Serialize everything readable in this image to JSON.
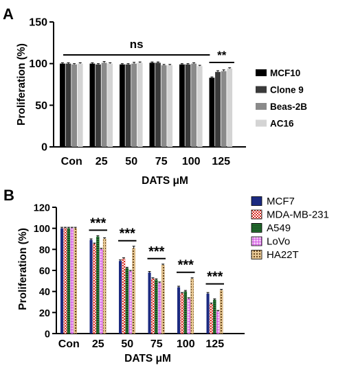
{
  "chart_data": [
    {
      "panel_label": "A",
      "type": "bar",
      "ylabel": "Proliferation (%)",
      "xlabel": "DATS μM",
      "ylim": [
        0,
        150
      ],
      "yticks": [
        0,
        50,
        100,
        150
      ],
      "categories": [
        "Con",
        "25",
        "50",
        "75",
        "100",
        "125"
      ],
      "series": [
        {
          "name": "MCF10",
          "color": "#000000",
          "pattern": "solid",
          "values": [
            100,
            100,
            99,
            101,
            99,
            83
          ],
          "errors": [
            1,
            1,
            1,
            1,
            1,
            1
          ]
        },
        {
          "name": "Clone 9",
          "color": "#3a3a3a",
          "pattern": "solid",
          "values": [
            100,
            99,
            99,
            101,
            99,
            90
          ],
          "errors": [
            1,
            1,
            1,
            1,
            1,
            1.5
          ]
        },
        {
          "name": "Beas-2B",
          "color": "#8a8a8a",
          "pattern": "solid",
          "values": [
            99,
            101,
            100,
            98,
            100,
            91
          ],
          "errors": [
            1,
            1.5,
            1.5,
            1,
            1,
            1.5
          ]
        },
        {
          "name": "AC16",
          "color": "#d4d4d4",
          "pattern": "solid",
          "values": [
            100,
            100,
            101,
            98,
            97,
            94
          ],
          "errors": [
            1,
            1,
            1,
            1,
            1,
            1
          ]
        }
      ],
      "annotations": [
        {
          "text": "ns",
          "from": 0,
          "to": 4
        },
        {
          "text": "**",
          "from": 5,
          "to": 5
        }
      ],
      "legend_position": "right",
      "grid": false
    },
    {
      "panel_label": "B",
      "type": "bar",
      "ylabel": "Proliferation (%)",
      "xlabel": "DATS μM",
      "ylim": [
        0,
        120
      ],
      "yticks": [
        0,
        20,
        40,
        60,
        80,
        100,
        120
      ],
      "categories": [
        "Con",
        "25",
        "50",
        "75",
        "100",
        "125"
      ],
      "series": [
        {
          "name": "MCF7",
          "color": "#1b2a80",
          "pattern": "solid",
          "values": [
            100,
            89,
            69,
            58,
            44,
            38
          ],
          "errors": [
            1,
            1,
            1,
            1,
            1,
            1
          ]
        },
        {
          "name": "MDA-MB-231",
          "color": "#d9281f",
          "pattern": "checker",
          "values": [
            100,
            85,
            71,
            52,
            38,
            28
          ],
          "errors": [
            1,
            1,
            1,
            1,
            1,
            1
          ]
        },
        {
          "name": "A549",
          "color": "#1e6b2a",
          "pattern": "hstripe",
          "values": [
            100,
            92,
            62,
            51,
            40,
            32
          ],
          "errors": [
            1,
            1,
            1,
            1,
            1,
            1
          ]
        },
        {
          "name": "LoVo",
          "color": "#d84ce6",
          "pattern": "grid",
          "values": [
            100,
            80,
            59,
            48,
            33,
            21
          ],
          "errors": [
            1,
            1,
            1,
            1,
            1,
            1
          ]
        },
        {
          "name": "HA22T",
          "color": "#b8873c",
          "pattern": "dots",
          "values": [
            100,
            90,
            81,
            65,
            52,
            41
          ],
          "errors": [
            1,
            1,
            2,
            1,
            1,
            1
          ]
        }
      ],
      "annotations": [
        {
          "text": "***",
          "group": 1
        },
        {
          "text": "***",
          "group": 2
        },
        {
          "text": "***",
          "group": 3
        },
        {
          "text": "***",
          "group": 4
        },
        {
          "text": "***",
          "group": 5
        }
      ],
      "legend_position": "right",
      "grid": false
    }
  ]
}
